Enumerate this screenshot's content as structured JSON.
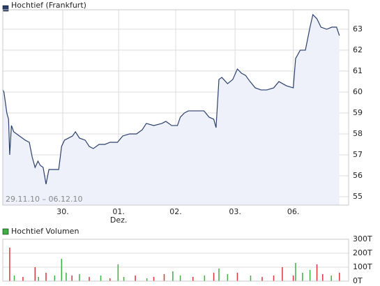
{
  "chart_data": [
    {
      "type": "line",
      "title": "Hochtief (Frankfurt)",
      "color": "#2b3f6b",
      "fill": "#eef0fa",
      "grid": true,
      "annotations": [
        "29.11.10 – 06.12.10",
        "Dez."
      ],
      "x": [
        0,
        0.02,
        0.07,
        0.1,
        0.12,
        0.15,
        0.19,
        0.29,
        0.39,
        0.46,
        0.51,
        0.56,
        0.61,
        0.65,
        0.7,
        0.75,
        0.8,
        0.87,
        0.97,
        1.02,
        1.07,
        1.14,
        1.21,
        1.26,
        1.33,
        1.43,
        1.5,
        1.57,
        1.67,
        1.77,
        1.86,
        1.99,
        2.08,
        2.2,
        2.32,
        2.42,
        2.49,
        2.62,
        2.76,
        2.83,
        2.93,
        3.03,
        3.08,
        3.15,
        3.22,
        3.34,
        3.49,
        3.58,
        3.66,
        3.7,
        3.75,
        3.8,
        3.9,
        3.99,
        4.07,
        4.14,
        4.21,
        4.29,
        4.38,
        4.48,
        4.58,
        4.7,
        4.79,
        4.92,
        5.04,
        5.08,
        5.16,
        5.25,
        5.33,
        5.38,
        5.45,
        5.52,
        5.62,
        5.71,
        5.79,
        5.84
      ],
      "values": [
        60.1,
        60.0,
        59.0,
        58.7,
        57.0,
        58.4,
        58.1,
        57.9,
        57.7,
        57.6,
        56.9,
        56.4,
        56.7,
        56.5,
        56.4,
        55.6,
        56.3,
        56.3,
        56.3,
        57.4,
        57.7,
        57.8,
        57.9,
        58.1,
        57.8,
        57.7,
        57.4,
        57.3,
        57.5,
        57.5,
        57.6,
        57.6,
        57.9,
        58.0,
        58.0,
        58.2,
        58.5,
        58.4,
        58.5,
        58.6,
        58.4,
        58.4,
        58.8,
        59.0,
        59.1,
        59.1,
        59.1,
        58.8,
        58.7,
        58.3,
        60.6,
        60.7,
        60.4,
        60.6,
        61.1,
        60.9,
        60.8,
        60.5,
        60.2,
        60.1,
        60.1,
        60.2,
        60.5,
        60.3,
        60.2,
        61.6,
        62.0,
        62.0,
        63.1,
        63.7,
        63.5,
        63.1,
        63.0,
        63.1,
        63.1,
        62.7
      ],
      "xlim": [
        0,
        6.0
      ],
      "xticks": [
        {
          "value": 1.04,
          "label": "30."
        },
        {
          "value": 2.01,
          "label": "01."
        },
        {
          "value": 3.0,
          "label": "02."
        },
        {
          "value": 4.03,
          "label": "03."
        },
        {
          "value": 5.04,
          "label": "06."
        }
      ],
      "ylim": [
        54.6,
        63.93
      ],
      "yticks": [
        55,
        56,
        57,
        58,
        59,
        60,
        61,
        62,
        63
      ]
    },
    {
      "type": "bar",
      "title": "Hochtief Volumen",
      "color": "#3cb043",
      "grid": true,
      "x": [
        0.12,
        0.2,
        0.35,
        0.56,
        0.62,
        0.75,
        0.9,
        1.02,
        1.1,
        1.2,
        1.33,
        1.5,
        1.7,
        1.86,
        2.0,
        2.1,
        2.3,
        2.5,
        2.62,
        2.8,
        2.95,
        3.08,
        3.3,
        3.5,
        3.66,
        3.75,
        3.9,
        4.07,
        4.3,
        4.5,
        4.7,
        4.85,
        5.04,
        5.08,
        5.2,
        5.33,
        5.45,
        5.55,
        5.7,
        5.84
      ],
      "values": [
        240000,
        40000,
        30000,
        100000,
        30000,
        60000,
        40000,
        160000,
        60000,
        40000,
        50000,
        30000,
        40000,
        20000,
        120000,
        30000,
        40000,
        20000,
        30000,
        50000,
        70000,
        40000,
        30000,
        40000,
        60000,
        90000,
        50000,
        60000,
        40000,
        30000,
        40000,
        100000,
        40000,
        130000,
        60000,
        80000,
        120000,
        50000,
        40000,
        60000
      ],
      "colors": [
        "#d9363e",
        "#3cb043",
        "#d9363e",
        "#d9363e",
        "#3cb043",
        "#d9363e",
        "#3cb043",
        "#3cb043",
        "#3cb043",
        "#d9363e",
        "#3cb043",
        "#d9363e",
        "#3cb043",
        "#d9363e",
        "#3cb043",
        "#3cb043",
        "#d9363e",
        "#3cb043",
        "#d9363e",
        "#d9363e",
        "#3cb043",
        "#3cb043",
        "#d9363e",
        "#3cb043",
        "#d9363e",
        "#3cb043",
        "#3cb043",
        "#d9363e",
        "#3cb043",
        "#d9363e",
        "#d9363e",
        "#d9363e",
        "#d9363e",
        "#3cb043",
        "#3cb043",
        "#3cb043",
        "#d9363e",
        "#d9363e",
        "#3cb043",
        "#d9363e"
      ],
      "xlim": [
        0,
        6.0
      ],
      "ylim": [
        0,
        300000
      ],
      "yticks": [
        {
          "value": 0,
          "label": "0T"
        },
        {
          "value": 100000,
          "label": "100T"
        },
        {
          "value": 200000,
          "label": "200T"
        },
        {
          "value": 300000,
          "label": "300T"
        }
      ]
    }
  ]
}
